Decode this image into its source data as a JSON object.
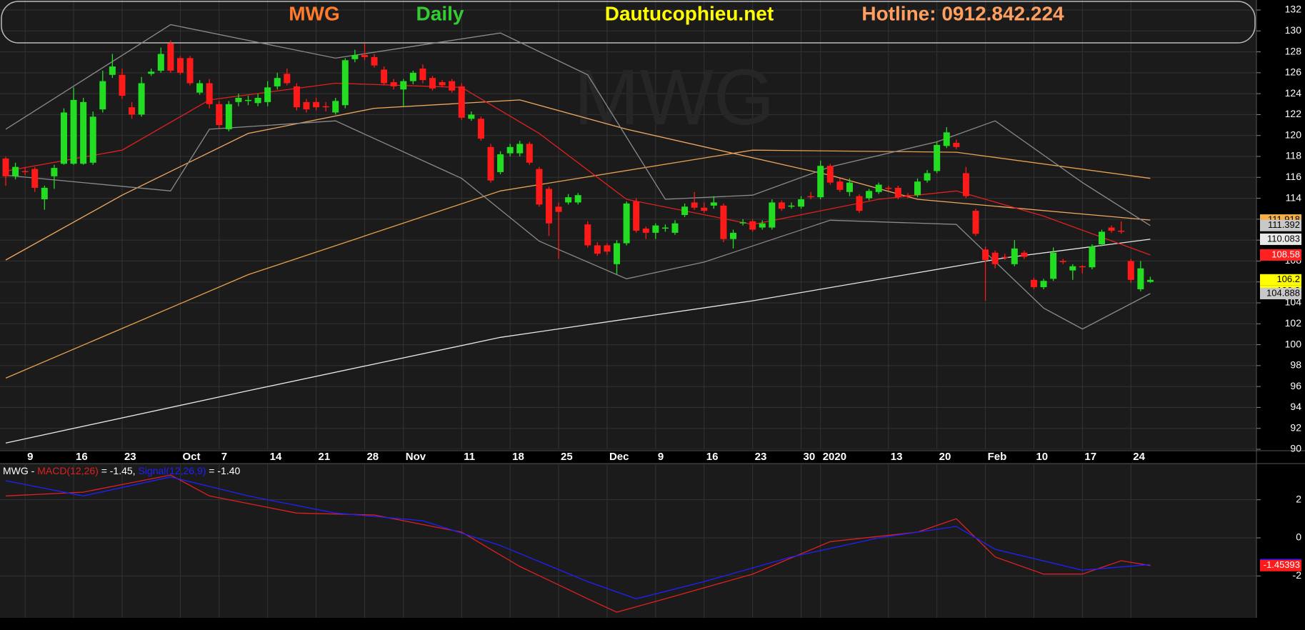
{
  "chart_data": [
    {
      "type": "candlestick",
      "header": [
        {
          "text": "MWG",
          "color": "#ff7b2e"
        },
        {
          "text": "Daily",
          "color": "#33cc33"
        },
        {
          "text": "Dautucophieu.net",
          "color": "#ffff00"
        },
        {
          "text": "Hotline: 0912.842.224",
          "color": "#ffa060"
        }
      ],
      "categories": [
        null,
        null,
        "9",
        null,
        null,
        null,
        null,
        "16",
        null,
        null,
        null,
        null,
        "23",
        null,
        null,
        null,
        null,
        null,
        "Oct",
        null,
        null,
        null,
        "7",
        null,
        null,
        null,
        null,
        "14",
        null,
        null,
        null,
        null,
        "21",
        null,
        null,
        null,
        null,
        "28",
        null,
        null,
        null,
        "Nov",
        null,
        null,
        null,
        null,
        null,
        "11",
        null,
        null,
        null,
        null,
        "18",
        null,
        null,
        null,
        null,
        "25",
        null,
        null,
        null,
        null,
        "Dec",
        null,
        null,
        null,
        null,
        "9",
        null,
        null,
        null,
        null,
        "16",
        null,
        null,
        null,
        null,
        "23",
        null,
        null,
        null,
        null,
        "30",
        null,
        "2020",
        null,
        null,
        null,
        null,
        null,
        null,
        "13",
        null,
        null,
        null,
        null,
        "20",
        null,
        null,
        null,
        null,
        "Feb",
        null,
        null,
        null,
        null,
        "10",
        null,
        null,
        null,
        null,
        "17",
        null,
        null,
        null,
        null,
        "24",
        null,
        null
      ],
      "open": [
        117.8,
        116.1,
        116.6,
        116.8,
        113.9,
        116.1,
        117.3,
        117.3,
        117.3,
        117.4,
        122.5,
        125.8,
        125.8,
        122.7,
        122,
        125.9,
        126.2,
        128.8,
        127.4,
        127.4,
        124.1,
        125,
        123,
        120.6,
        123.2,
        123.3,
        123.1,
        123.2,
        124.7,
        125.9,
        124.7,
        123.2,
        123.2,
        122.8,
        122.2,
        122.9,
        127.3,
        127.7,
        127.5,
        126.3,
        125.1,
        124.4,
        125.2,
        126.4,
        125.5,
        125.1,
        125.2,
        124.7,
        121.6,
        121.6,
        118.9,
        116.5,
        118.3,
        118.3,
        119.2,
        116.8,
        114.9,
        113.2,
        113.6,
        113.6,
        111.5,
        109.5,
        109.5,
        107.7,
        109.7,
        113.7,
        111.1,
        110.7,
        111.1,
        110.7,
        112.4,
        113.6,
        113.1,
        113.3,
        113.3,
        110.1,
        111.6,
        111.8,
        111.2,
        111.2,
        113.6,
        113.2,
        113.2,
        114.2,
        114.1,
        117.1,
        115.6,
        114.6,
        114.2,
        114,
        114.6,
        115,
        115,
        114.3,
        114.3,
        115.7,
        116.6,
        119,
        119.3,
        116.4,
        112.8,
        109.1,
        108.8,
        108.4,
        107.7,
        108.8,
        106.2,
        105.5,
        106.3,
        108,
        107.1,
        107.5,
        107.4,
        109.6,
        111.2,
        110.9,
        108,
        105.3,
        106
      ],
      "high": [
        118,
        117.4,
        117,
        117,
        115.2,
        117.2,
        122.6,
        124.6,
        123.6,
        122.3,
        126.2,
        127.8,
        126.4,
        123.2,
        125.6,
        126.4,
        128.4,
        129.1,
        127.6,
        127.6,
        125.3,
        125.4,
        123.3,
        123.3,
        124,
        123.8,
        124,
        125.2,
        126,
        126.4,
        125,
        123.5,
        123.6,
        123.2,
        123.6,
        127.4,
        128.2,
        128.8,
        127.8,
        126.6,
        125.4,
        125.4,
        126.2,
        126.8,
        125.7,
        125.3,
        125.4,
        125,
        122.3,
        121.8,
        119.2,
        118.5,
        119.2,
        119.5,
        119.4,
        117,
        115.1,
        113.6,
        114.4,
        114.5,
        111.8,
        109.8,
        109.7,
        110,
        113.7,
        114,
        111.3,
        111.6,
        111.5,
        111.9,
        113.5,
        114.6,
        113.6,
        114.2,
        113.5,
        111,
        112,
        112,
        111.9,
        113.9,
        113.8,
        113.6,
        114.2,
        114.6,
        117.6,
        117.3,
        115.9,
        115.9,
        114.4,
        114.9,
        115.5,
        115.2,
        115.2,
        114.5,
        115.9,
        116.7,
        119.4,
        120.8,
        119.6,
        117,
        113,
        109.4,
        109,
        108.7,
        110,
        109,
        106.4,
        106.3,
        109.3,
        108.2,
        107.7,
        107.6,
        109.6,
        111,
        111.4,
        111.8,
        108.2,
        108,
        106.5
      ],
      "low": [
        115.2,
        115.8,
        116.2,
        114.6,
        112.9,
        114.9,
        117.2,
        117.2,
        117.2,
        117.2,
        122.2,
        125.5,
        123.5,
        121.6,
        121.8,
        125.7,
        126,
        126,
        125.8,
        124.8,
        123.9,
        122.6,
        120.7,
        120.4,
        122.8,
        122.9,
        122.8,
        122.8,
        124.4,
        124.8,
        122.4,
        122.2,
        122.4,
        122.3,
        122,
        122.6,
        127,
        127.2,
        126.5,
        124.8,
        124.4,
        122.8,
        124.9,
        125,
        124.3,
        124.6,
        124.1,
        121.5,
        121.4,
        119.5,
        115.5,
        116.3,
        118,
        118,
        117.2,
        113.2,
        110.4,
        108.2,
        113.4,
        113.4,
        109.3,
        108.5,
        108.6,
        106.7,
        109.5,
        110.7,
        110.1,
        110.1,
        110.8,
        110.5,
        112.2,
        112.9,
        112.6,
        113,
        109.8,
        109.2,
        111.4,
        110.8,
        111,
        111,
        112.8,
        113,
        113,
        113.9,
        113.9,
        115.3,
        114.6,
        114.2,
        112.6,
        113.8,
        114.4,
        114.7,
        113.9,
        114,
        114.1,
        115.5,
        116.4,
        118.8,
        118.7,
        114,
        110.4,
        104.2,
        107.3,
        108.1,
        107.5,
        108.2,
        105.3,
        105.3,
        106.1,
        107.7,
        106.2,
        106.8,
        107.2,
        109.4,
        110.7,
        110.6,
        105.9,
        105.1,
        105.9
      ],
      "close": [
        116.1,
        117,
        116.5,
        115,
        115,
        116.9,
        122.2,
        123.4,
        123.2,
        121.8,
        125.2,
        126.6,
        123.8,
        122,
        125,
        126.1,
        127.8,
        126.2,
        126,
        125,
        125,
        123,
        121,
        123,
        123.6,
        123.4,
        123.6,
        124.6,
        125.5,
        125,
        122.7,
        122.5,
        122.7,
        122.7,
        123.3,
        127.2,
        127.7,
        127.5,
        126.7,
        125,
        124.7,
        125.2,
        126,
        125.3,
        124.5,
        124.8,
        124.3,
        121.7,
        122,
        119.7,
        115.7,
        118.2,
        118.9,
        119.2,
        117.4,
        113.4,
        111.6,
        112.7,
        114.1,
        114.3,
        109.5,
        108.7,
        108.9,
        109.7,
        113.5,
        110.9,
        110.7,
        111.4,
        111.2,
        111.6,
        113.2,
        113.1,
        112.8,
        113.6,
        110.1,
        110.7,
        111.7,
        111,
        111.6,
        113.6,
        113,
        113.3,
        113.9,
        114.1,
        117.1,
        115.5,
        114.8,
        115.5,
        112.8,
        114.7,
        115.3,
        114.9,
        114.1,
        114.2,
        115.6,
        116.4,
        119.1,
        120.3,
        118.9,
        114.2,
        110.6,
        108.1,
        107.7,
        108.3,
        109.2,
        108.4,
        105.5,
        106.1,
        108.8,
        107.9,
        107.5,
        107.4,
        109.4,
        110.8,
        110.9,
        110.8,
        106.2,
        107.3,
        106.2
      ],
      "up_color": "#22dd22",
      "down_color": "#ff1a1a",
      "lines": [
        {
          "color": "#e8e8e8",
          "x": [
            0,
            25,
            51,
            77,
            103,
            118
          ],
          "values": [
            90.6,
            95.6,
            100.7,
            104.2,
            108.3,
            110.083
          ]
        },
        {
          "color": "#f0a860",
          "x": [
            0,
            12,
            25,
            38,
            53,
            64,
            85,
            94,
            118
          ],
          "values": [
            108.1,
            114.3,
            120.2,
            122.6,
            123.4,
            120.6,
            116.2,
            113.9,
            111.918
          ]
        },
        {
          "color": "#e8a050",
          "x": [
            0,
            25,
            51,
            77,
            98,
            118
          ],
          "values": [
            96.8,
            106.7,
            114.7,
            118.6,
            118.4,
            115.9
          ]
        },
        {
          "color": "#e02020",
          "x": [
            0,
            12,
            21,
            34,
            47,
            55,
            64,
            77,
            90,
            98,
            107,
            118
          ],
          "values": [
            116.6,
            118.6,
            123.4,
            125,
            124.6,
            120.2,
            113.9,
            111.5,
            113.9,
            114.7,
            112.3,
            108.58
          ]
        },
        {
          "color": "#8a8a8a",
          "x": [
            0,
            17,
            34,
            51,
            60,
            68,
            77,
            85,
            96,
            102,
            111,
            118
          ],
          "values": [
            120.6,
            130.6,
            127.4,
            129.8,
            125.8,
            113.9,
            114.3,
            117,
            119.4,
            121.4,
            115.5,
            111.392
          ]
        },
        {
          "color": "#8a8a8a",
          "x": [
            0,
            17,
            21,
            34,
            47,
            55,
            64,
            72,
            85,
            98,
            107,
            111,
            118
          ],
          "values": [
            116.2,
            114.7,
            120.6,
            121.4,
            115.9,
            109.9,
            106.3,
            107.9,
            111.9,
            111.5,
            103.5,
            101.5,
            104.888
          ]
        }
      ],
      "value_tags": [
        {
          "value": 111.918,
          "color": "#f5b04c"
        },
        {
          "value": 111.392,
          "color": "#c8c8c8"
        },
        {
          "value": 110.083,
          "color": "#e8e8e8"
        },
        {
          "value": 108.58,
          "color": "#ff2020"
        },
        {
          "value": 106.2,
          "color": "#ffff00"
        },
        {
          "value": 106.2,
          "color": "#ffff00"
        },
        {
          "value": 104.888,
          "color": "#c8c8c8"
        }
      ],
      "ylim": [
        90,
        132
      ],
      "yticks": [
        90,
        92,
        94,
        96,
        98,
        100,
        102,
        104,
        106,
        108,
        110,
        112,
        114,
        116,
        118,
        120,
        122,
        124,
        126,
        128,
        130,
        132
      ],
      "grid": true
    },
    {
      "type": "line",
      "legend": [
        {
          "text": "MWG - ",
          "color": "#ffffff"
        },
        {
          "text": "MACD(12,26)",
          "color": "#e02020"
        },
        {
          "text": " = -1.45, ",
          "color": "#ffffff"
        },
        {
          "text": "Signal(12,26,9)",
          "color": "#2020ff"
        },
        {
          "text": " = -1.40",
          "color": "#ffffff"
        }
      ],
      "series": [
        {
          "color": "#e02020",
          "x": [
            0,
            8,
            17,
            21,
            30,
            38,
            47,
            53,
            60,
            63,
            68,
            77,
            85,
            94,
            98,
            102,
            107,
            111,
            115,
            118
          ],
          "values": [
            2.2,
            2.4,
            3.3,
            2.2,
            1.3,
            1.2,
            0.3,
            -1.5,
            -3.2,
            -3.9,
            -3.2,
            -1.9,
            -0.2,
            0.3,
            1,
            -1,
            -1.9,
            -1.9,
            -1.2,
            -1.45393
          ]
        },
        {
          "color": "#2020ff",
          "x": [
            0,
            8,
            17,
            25,
            34,
            43,
            51,
            60,
            65,
            72,
            81,
            90,
            98,
            102,
            111,
            118
          ],
          "values": [
            3,
            2.2,
            3.2,
            2.2,
            1.3,
            0.9,
            -0.4,
            -2.3,
            -3.2,
            -2.3,
            -1,
            0,
            0.6,
            -0.6,
            -1.7,
            -1.39833
          ]
        }
      ],
      "value_tags": [
        {
          "value": -1.39833,
          "color": "#1010ff"
        },
        {
          "value": -1.45393,
          "color": "#ff1a1a"
        }
      ],
      "ylim": [
        -4.2,
        3.9
      ],
      "yticks": [
        -2,
        0,
        2
      ]
    }
  ]
}
